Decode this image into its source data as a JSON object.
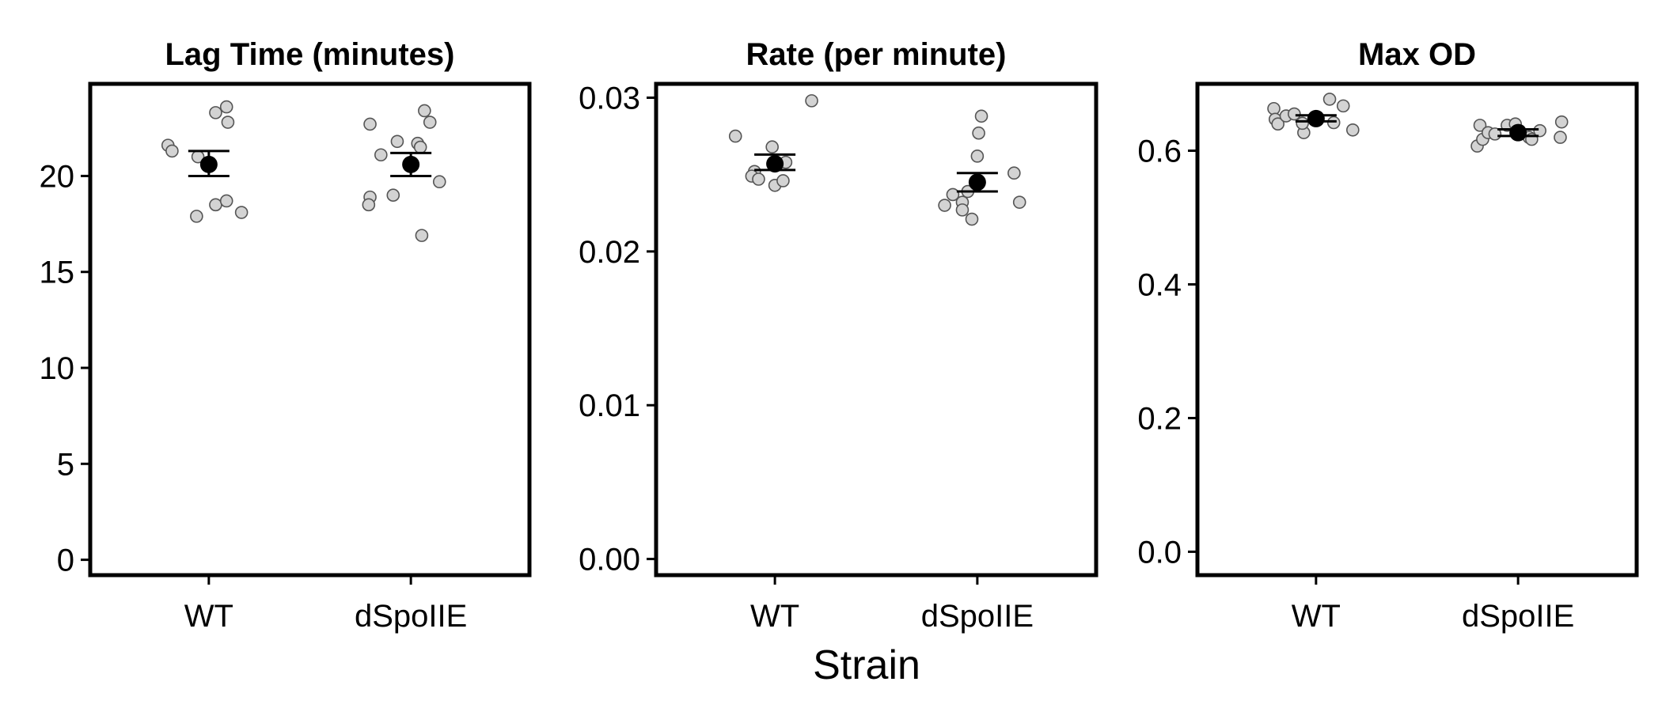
{
  "chart_data": {
    "type": "scatter",
    "xlabel": "Strain",
    "categories": [
      "WT",
      "dSpoIIE"
    ],
    "grid": false,
    "legend": "none",
    "colors": {
      "point_fill": "#d3d3d3",
      "point_stroke": "#555555",
      "mean": "#000000",
      "axis": "#000000"
    },
    "panels": [
      {
        "title": "Lag Time (minutes)",
        "ylim": [
          -0.8,
          24.8
        ],
        "yticks": [
          0,
          5,
          10,
          15,
          20
        ],
        "ytick_labels": [
          "0",
          "5",
          "10",
          "15",
          "20"
        ],
        "groups": [
          {
            "name": "WT",
            "mean": 20.6,
            "err_low": 20.0,
            "err_high": 21.3,
            "points": [
              [
                -0.3,
                21.6
              ],
              [
                -0.27,
                21.3
              ],
              [
                -0.08,
                21.0
              ],
              [
                0.05,
                23.3
              ],
              [
                0.13,
                23.6
              ],
              [
                0.14,
                22.8
              ],
              [
                -0.09,
                17.9
              ],
              [
                0.05,
                18.5
              ],
              [
                0.13,
                18.7
              ],
              [
                0.24,
                18.1
              ]
            ]
          },
          {
            "name": "dSpoIIE",
            "mean": 20.6,
            "err_low": 20.0,
            "err_high": 21.2,
            "points": [
              [
                -0.3,
                22.7
              ],
              [
                -0.22,
                21.1
              ],
              [
                -0.1,
                21.8
              ],
              [
                0.05,
                21.7
              ],
              [
                0.07,
                21.5
              ],
              [
                0.1,
                23.4
              ],
              [
                0.14,
                22.8
              ],
              [
                -0.3,
                18.9
              ],
              [
                -0.31,
                18.5
              ],
              [
                -0.13,
                19.0
              ],
              [
                0.21,
                19.7
              ],
              [
                0.08,
                16.9
              ]
            ]
          }
        ]
      },
      {
        "title": "Rate (per minute)",
        "ylim": [
          -0.00105,
          0.0309
        ],
        "yticks": [
          0,
          0.01,
          0.02,
          0.03
        ],
        "ytick_labels": [
          "0.00",
          "0.01",
          "0.02",
          "0.03"
        ],
        "groups": [
          {
            "name": "WT",
            "mean": 0.0257,
            "err_low": 0.0253,
            "err_high": 0.0263,
            "points": [
              [
                -0.29,
                0.0275
              ],
              [
                -0.15,
                0.0252
              ],
              [
                -0.17,
                0.0249
              ],
              [
                -0.12,
                0.0247
              ],
              [
                -0.02,
                0.0268
              ],
              [
                0.0,
                0.0243
              ],
              [
                0.06,
                0.0246
              ],
              [
                0.08,
                0.0258
              ],
              [
                0.27,
                0.0298
              ]
            ]
          },
          {
            "name": "dSpoIIE",
            "mean": 0.0245,
            "err_low": 0.0239,
            "err_high": 0.0251,
            "points": [
              [
                -0.24,
                0.023
              ],
              [
                -0.18,
                0.0237
              ],
              [
                -0.11,
                0.0232
              ],
              [
                -0.11,
                0.0227
              ],
              [
                -0.07,
                0.0239
              ],
              [
                -0.04,
                0.0221
              ],
              [
                0.0,
                0.0262
              ],
              [
                0.01,
                0.0277
              ],
              [
                0.03,
                0.0288
              ],
              [
                0.27,
                0.0251
              ],
              [
                0.31,
                0.0232
              ]
            ]
          }
        ]
      },
      {
        "title": "Max OD",
        "ylim": [
          -0.035,
          0.7
        ],
        "yticks": [
          0,
          0.2,
          0.4,
          0.6
        ],
        "ytick_labels": [
          "0.0",
          "0.2",
          "0.4",
          "0.6"
        ],
        "groups": [
          {
            "name": "WT",
            "mean": 0.648,
            "err_low": 0.644,
            "err_high": 0.653,
            "points": [
              [
                -0.31,
                0.663
              ],
              [
                -0.3,
                0.647
              ],
              [
                -0.28,
                0.64
              ],
              [
                -0.22,
                0.652
              ],
              [
                -0.16,
                0.655
              ],
              [
                -0.09,
                0.627
              ],
              [
                -0.1,
                0.641
              ],
              [
                0.1,
                0.677
              ],
              [
                0.13,
                0.642
              ],
              [
                0.2,
                0.667
              ],
              [
                0.27,
                0.631
              ]
            ]
          },
          {
            "name": "dSpoIIE",
            "mean": 0.627,
            "err_low": 0.622,
            "err_high": 0.632,
            "points": [
              [
                -0.3,
                0.607
              ],
              [
                -0.28,
                0.638
              ],
              [
                -0.26,
                0.617
              ],
              [
                -0.22,
                0.627
              ],
              [
                -0.17,
                0.625
              ],
              [
                -0.08,
                0.638
              ],
              [
                -0.02,
                0.64
              ],
              [
                0.01,
                0.63
              ],
              [
                0.08,
                0.62
              ],
              [
                0.1,
                0.617
              ],
              [
                0.16,
                0.63
              ],
              [
                0.31,
                0.62
              ],
              [
                0.32,
                0.643
              ]
            ]
          }
        ]
      }
    ]
  }
}
